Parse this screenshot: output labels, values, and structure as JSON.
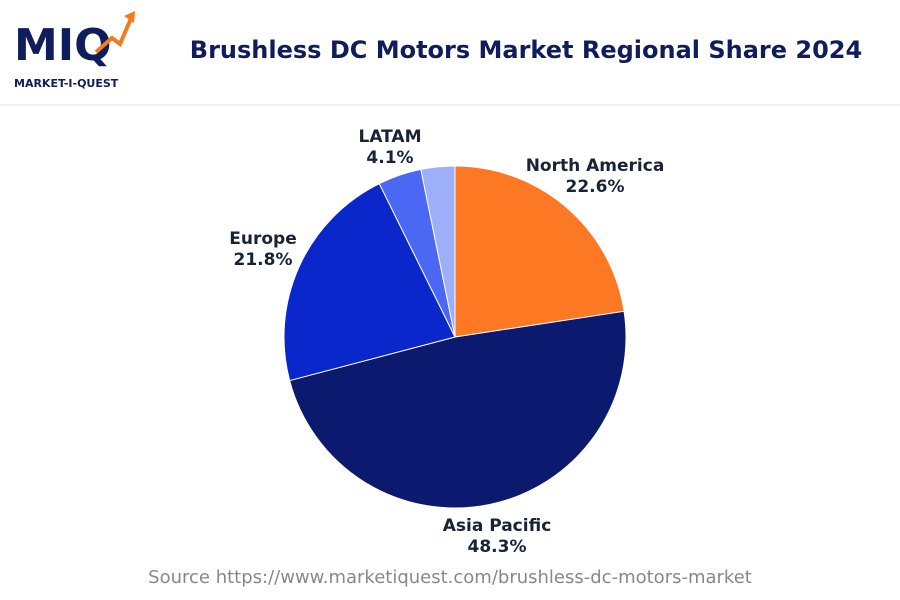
{
  "logo": {
    "mark": "MIQ",
    "name": "MARKET-I-QUEST"
  },
  "chart_data": {
    "type": "pie",
    "title": "Brushless DC Motors Market Regional Share 2024",
    "categories": [
      "North America",
      "Asia Pacific",
      "Europe",
      "LATAM",
      null
    ],
    "values": [
      22.6,
      48.3,
      21.8,
      4.1,
      3.2
    ],
    "value_labels": [
      "22.6%",
      "48.3%",
      "21.8%",
      "4.1%",
      null
    ],
    "colors": [
      "#fd7822",
      "#0b1a6f",
      "#0a27cc",
      "#4a68f3",
      "#9eaffa"
    ],
    "source": "Source https://www.marketiquest.com/brushless-dc-motors-market"
  }
}
